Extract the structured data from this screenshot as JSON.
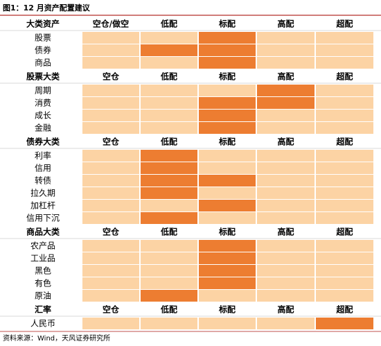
{
  "header": {
    "title": "图1：12 月资产配置建议"
  },
  "sections": [
    {
      "header": [
        "大类资产",
        "空仓/做空",
        "低配",
        "标配",
        "高配",
        "超配"
      ],
      "rows": [
        {
          "label": "股票",
          "highlighted": [
            false,
            false,
            true,
            false,
            false
          ]
        },
        {
          "label": "债券",
          "highlighted": [
            false,
            true,
            true,
            false,
            false
          ]
        },
        {
          "label": "商品",
          "highlighted": [
            false,
            false,
            true,
            false,
            false
          ]
        }
      ]
    },
    {
      "header": [
        "股票大类",
        "空仓",
        "低配",
        "标配",
        "高配",
        "超配"
      ],
      "rows": [
        {
          "label": "周期",
          "highlighted": [
            false,
            false,
            false,
            true,
            false
          ]
        },
        {
          "label": "消费",
          "highlighted": [
            false,
            false,
            true,
            true,
            false
          ]
        },
        {
          "label": "成长",
          "highlighted": [
            false,
            false,
            true,
            false,
            false
          ]
        },
        {
          "label": "金融",
          "highlighted": [
            false,
            false,
            true,
            false,
            false
          ]
        }
      ]
    },
    {
      "header": [
        "债券大类",
        "空仓",
        "低配",
        "标配",
        "高配",
        "超配"
      ],
      "rows": [
        {
          "label": "利率",
          "highlighted": [
            false,
            true,
            false,
            false,
            false
          ]
        },
        {
          "label": "信用",
          "highlighted": [
            false,
            true,
            false,
            false,
            false
          ]
        },
        {
          "label": "转债",
          "highlighted": [
            false,
            true,
            true,
            false,
            false
          ]
        },
        {
          "label": "拉久期",
          "highlighted": [
            false,
            true,
            false,
            false,
            false
          ]
        },
        {
          "label": "加杠杆",
          "highlighted": [
            false,
            false,
            true,
            false,
            false
          ]
        },
        {
          "label": "信用下沉",
          "highlighted": [
            false,
            true,
            false,
            false,
            false
          ]
        }
      ]
    },
    {
      "header": [
        "商品大类",
        "空仓",
        "低配",
        "标配",
        "高配",
        "超配"
      ],
      "rows": [
        {
          "label": "农产品",
          "highlighted": [
            false,
            false,
            true,
            false,
            false
          ]
        },
        {
          "label": "工业品",
          "highlighted": [
            false,
            false,
            true,
            false,
            false
          ]
        },
        {
          "label": "黑色",
          "highlighted": [
            false,
            false,
            true,
            false,
            false
          ]
        },
        {
          "label": "有色",
          "highlighted": [
            false,
            false,
            true,
            false,
            false
          ]
        },
        {
          "label": "原油",
          "highlighted": [
            false,
            true,
            false,
            false,
            false
          ]
        }
      ]
    },
    {
      "header": [
        "汇率",
        "空仓",
        "低配",
        "标配",
        "高配",
        "超配"
      ],
      "rows": [
        {
          "label": "人民币",
          "highlighted": [
            false,
            false,
            false,
            false,
            true
          ]
        }
      ]
    }
  ],
  "colors": {
    "light": "#fcd3a4",
    "dark": "#ed7d31"
  },
  "footer": {
    "source": "资料来源：Wind，天风证券研究所"
  }
}
